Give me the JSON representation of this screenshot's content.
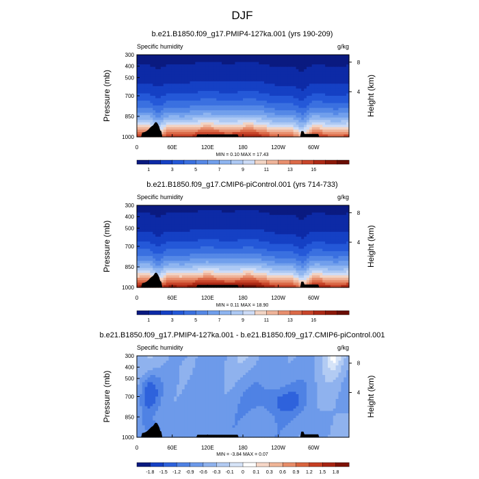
{
  "main_title": "DJF",
  "chart_data": [
    {
      "type": "heatmap",
      "title": "b.e21.B1850.f09_g17.PMIP4-127ka.001 (yrs 190-209)",
      "left_label": "Specific humidity",
      "right_label": "g/kg",
      "ylabel": "Pressure (mb)",
      "ylabel_right": "Height (km)",
      "x_ticks": [
        "0",
        "60E",
        "120E",
        "180",
        "120W",
        "60W"
      ],
      "y_ticks": [
        "300",
        "400",
        "500",
        "700",
        "850",
        "1000"
      ],
      "height_ticks": [
        "8",
        "4"
      ],
      "minmax": "MIN =   0.10  MAX = 17.43",
      "colorbar_labels": [
        "1",
        "3",
        "5",
        "7",
        "9",
        "11",
        "13",
        "16"
      ]
    },
    {
      "type": "heatmap",
      "title": "b.e21.B1850.f09_g17.CMIP6-piControl.001 (yrs 714-733)",
      "left_label": "Specific humidity",
      "right_label": "g/kg",
      "ylabel": "Pressure (mb)",
      "ylabel_right": "Height (km)",
      "x_ticks": [
        "0",
        "60E",
        "120E",
        "180",
        "120W",
        "60W"
      ],
      "y_ticks": [
        "300",
        "400",
        "500",
        "700",
        "850",
        "1000"
      ],
      "height_ticks": [
        "8",
        "4"
      ],
      "minmax": "MIN =   0.11  MAX = 18.90",
      "colorbar_labels": [
        "1",
        "3",
        "5",
        "7",
        "9",
        "11",
        "13",
        "16"
      ]
    },
    {
      "type": "heatmap",
      "title": "b.e21.B1850.f09_g17.PMIP4-127ka.001 - b.e21.B1850.f09_g17.CMIP6-piControl.001",
      "left_label": "Specific humidity",
      "right_label": "g/kg",
      "ylabel": "Pressure (mb)",
      "ylabel_right": "Height (km)",
      "x_ticks": [
        "0",
        "60E",
        "120E",
        "180",
        "120W",
        "60W"
      ],
      "y_ticks": [
        "300",
        "400",
        "500",
        "700",
        "850",
        "1000"
      ],
      "height_ticks": [
        "8",
        "4"
      ],
      "minmax": "MIN =  -3.84  MAX =   0.07",
      "colorbar_labels": [
        "-1.8",
        "-1.5",
        "-1.2",
        "-0.9",
        "-0.6",
        "-0.3",
        "-0.1",
        "0",
        "0.1",
        "0.3",
        "0.6",
        "0.9",
        "1.2",
        "1.5",
        "1.8"
      ]
    }
  ],
  "colors": {
    "abs_palette": [
      "#0a1a80",
      "#0d2aa6",
      "#1540c4",
      "#2458d8",
      "#3a70e0",
      "#5588e6",
      "#719fec",
      "#8fb5f0",
      "#adc9f4",
      "#cddcf7",
      "#f2d4c4",
      "#efb49a",
      "#e88f6e",
      "#db6a48",
      "#c8452a",
      "#ad2a16",
      "#8c1808",
      "#6a0d04"
    ],
    "diff_palette": [
      "#0a1a80",
      "#1540c4",
      "#2e62dc",
      "#4f82e4",
      "#6d9aea",
      "#8fb2ee",
      "#b2cbf3",
      "#d6e4f8",
      "#ffffff",
      "#f7d7c7",
      "#f0b597",
      "#e88d69",
      "#d9653f",
      "#c63e22",
      "#a82412",
      "#7e1206"
    ],
    "terrain": "#000000"
  }
}
